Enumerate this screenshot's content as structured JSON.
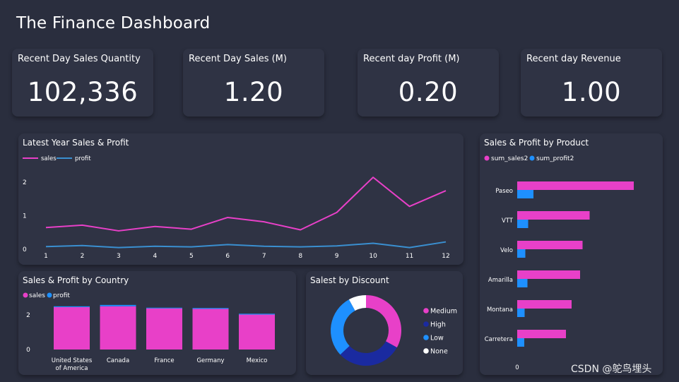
{
  "title": "The Finance Dashboard",
  "kpis": [
    {
      "label": "Recent Day Sales Quantity",
      "value": "102,336"
    },
    {
      "label": "Recent Day Sales (M)",
      "value": "1.20"
    },
    {
      "label": "Recent day Profit (M)",
      "value": "0.20"
    },
    {
      "label": "Recent day Revenue",
      "value": "1.00"
    }
  ],
  "watermark": "CSDN @鸵鸟埋头",
  "colors": {
    "sales": "#e840c8",
    "profit": "#1e90ff",
    "high": "#1a2aa0",
    "none": "#ffffff",
    "line_profit": "#3a8fd0"
  },
  "chart_data": [
    {
      "id": "latest-year",
      "type": "line",
      "title": "Latest Year Sales & Profit",
      "x": [
        1,
        2,
        3,
        4,
        5,
        6,
        7,
        8,
        9,
        10,
        11,
        12
      ],
      "series": [
        {
          "name": "sales",
          "values": [
            0.65,
            0.72,
            0.55,
            0.68,
            0.6,
            0.95,
            0.82,
            0.58,
            1.1,
            2.15,
            1.28,
            1.75
          ]
        },
        {
          "name": "profit",
          "values": [
            0.08,
            0.11,
            0.05,
            0.09,
            0.07,
            0.14,
            0.09,
            0.07,
            0.1,
            0.18,
            0.05,
            0.22
          ]
        }
      ],
      "yticks": [
        "0",
        "1",
        "2"
      ],
      "ylim": [
        0,
        2.3
      ]
    },
    {
      "id": "by-product",
      "type": "bar",
      "title": "Sales & Profit by Product",
      "orientation": "horizontal",
      "categories": [
        "Paseo",
        "VTT",
        "Velo",
        "Amarilla",
        "Montana",
        "Carretera"
      ],
      "series": [
        {
          "name": "sum_sales2",
          "values": [
            33.0,
            20.5,
            18.5,
            17.8,
            15.4,
            13.8
          ]
        },
        {
          "name": "sum_profit2",
          "values": [
            4.6,
            3.1,
            2.3,
            2.9,
            2.1,
            2.0
          ]
        }
      ],
      "xtick": "0",
      "xlim": [
        0,
        40
      ]
    },
    {
      "id": "by-country",
      "type": "bar",
      "title": "Sales & Profit by Country",
      "stacked": true,
      "categories": [
        "United States of America",
        "Canada",
        "France",
        "Germany",
        "Mexico"
      ],
      "category_lines": [
        [
          "United States",
          "of America"
        ],
        [
          "Canada"
        ],
        [
          "France"
        ],
        [
          "Germany"
        ],
        [
          "Mexico"
        ]
      ],
      "series": [
        {
          "name": "sales",
          "values": [
            2.45,
            2.5,
            2.38,
            2.35,
            2.02
          ]
        },
        {
          "name": "profit",
          "values": [
            0.05,
            0.08,
            0.04,
            0.05,
            0.05
          ]
        }
      ],
      "yticks": [
        "0",
        "2"
      ],
      "ylim": [
        0,
        2.9
      ]
    },
    {
      "id": "by-discount",
      "type": "pie",
      "donut": true,
      "title": "Salest by Discount",
      "categories": [
        "Medium",
        "High",
        "Low",
        "None"
      ],
      "values": [
        33,
        30,
        29,
        8
      ],
      "colors": [
        "#e840c8",
        "#1a2aa0",
        "#1e90ff",
        "#ffffff"
      ]
    }
  ]
}
